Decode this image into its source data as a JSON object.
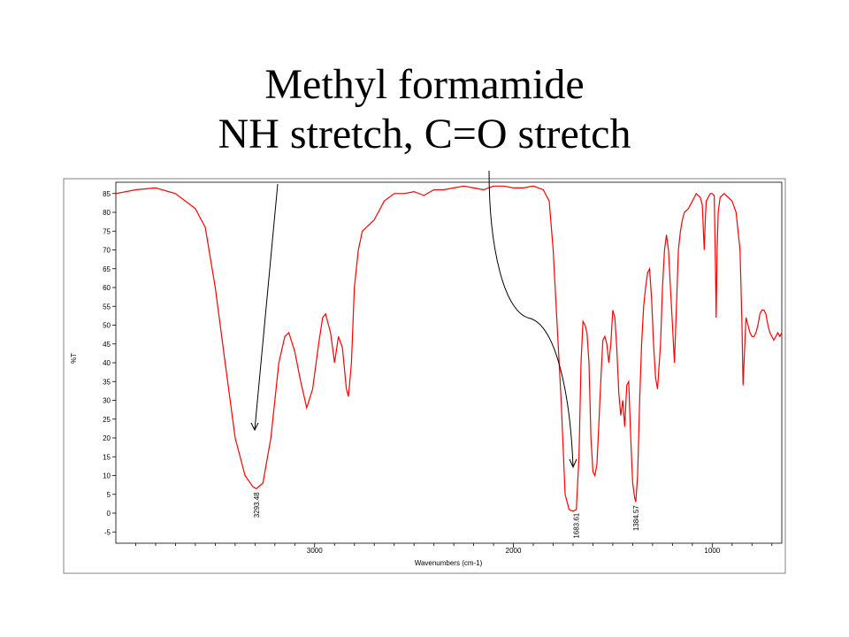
{
  "slide": {
    "title_line1": "Methyl formamide",
    "title_line2": "NH stretch, C=O stretch"
  },
  "chart_data": {
    "type": "line",
    "title": "",
    "xlabel": "Wavenumbers (cm-1)",
    "ylabel": "%T",
    "xlim": [
      4000,
      650
    ],
    "x_reversed": true,
    "ylim": [
      -8,
      88
    ],
    "x_ticks": [
      3000,
      2000,
      1000
    ],
    "y_ticks": [
      -5,
      0,
      5,
      10,
      15,
      20,
      25,
      30,
      35,
      40,
      45,
      50,
      55,
      60,
      65,
      70,
      75,
      80,
      85
    ],
    "grid": false,
    "line_color": "#ff0000",
    "series": [
      {
        "points": [
          [
            4000,
            85
          ],
          [
            3900,
            86
          ],
          [
            3800,
            86.5
          ],
          [
            3700,
            85
          ],
          [
            3600,
            81
          ],
          [
            3550,
            76
          ],
          [
            3500,
            60
          ],
          [
            3450,
            40
          ],
          [
            3400,
            20
          ],
          [
            3350,
            10
          ],
          [
            3310,
            7
          ],
          [
            3293.48,
            6.5
          ],
          [
            3260,
            8
          ],
          [
            3220,
            20
          ],
          [
            3180,
            40
          ],
          [
            3150,
            47
          ],
          [
            3130,
            48
          ],
          [
            3100,
            43
          ],
          [
            3070,
            35
          ],
          [
            3040,
            28
          ],
          [
            3010,
            33
          ],
          [
            2980,
            45
          ],
          [
            2960,
            52
          ],
          [
            2945,
            53
          ],
          [
            2920,
            48
          ],
          [
            2900,
            40
          ],
          [
            2880,
            47
          ],
          [
            2860,
            44
          ],
          [
            2840,
            33
          ],
          [
            2830,
            31
          ],
          [
            2815,
            40
          ],
          [
            2800,
            60
          ],
          [
            2780,
            70
          ],
          [
            2760,
            75
          ],
          [
            2740,
            76
          ],
          [
            2700,
            78
          ],
          [
            2650,
            83
          ],
          [
            2600,
            85
          ],
          [
            2550,
            85
          ],
          [
            2500,
            85.5
          ],
          [
            2450,
            84.5
          ],
          [
            2400,
            86
          ],
          [
            2350,
            86
          ],
          [
            2300,
            86.5
          ],
          [
            2250,
            87
          ],
          [
            2200,
            86.5
          ],
          [
            2150,
            86
          ],
          [
            2100,
            87
          ],
          [
            2050,
            87
          ],
          [
            2000,
            86.5
          ],
          [
            1950,
            86.5
          ],
          [
            1900,
            87
          ],
          [
            1850,
            86
          ],
          [
            1820,
            83
          ],
          [
            1800,
            70
          ],
          [
            1780,
            50
          ],
          [
            1760,
            30
          ],
          [
            1740,
            5
          ],
          [
            1720,
            1
          ],
          [
            1700,
            0.5
          ],
          [
            1683.61,
            1
          ],
          [
            1670,
            15
          ],
          [
            1660,
            40
          ],
          [
            1650,
            51
          ],
          [
            1640,
            50
          ],
          [
            1630,
            48
          ],
          [
            1620,
            40
          ],
          [
            1610,
            20
          ],
          [
            1600,
            11
          ],
          [
            1590,
            10
          ],
          [
            1580,
            13
          ],
          [
            1570,
            24
          ],
          [
            1560,
            36
          ],
          [
            1550,
            46
          ],
          [
            1540,
            47
          ],
          [
            1530,
            45
          ],
          [
            1520,
            40
          ],
          [
            1510,
            45
          ],
          [
            1500,
            54
          ],
          [
            1490,
            52
          ],
          [
            1480,
            44
          ],
          [
            1470,
            32
          ],
          [
            1460,
            26
          ],
          [
            1450,
            30
          ],
          [
            1440,
            23
          ],
          [
            1430,
            34
          ],
          [
            1420,
            35
          ],
          [
            1410,
            20
          ],
          [
            1400,
            8
          ],
          [
            1390,
            4
          ],
          [
            1384.57,
            3
          ],
          [
            1375,
            10
          ],
          [
            1365,
            30
          ],
          [
            1355,
            45
          ],
          [
            1345,
            55
          ],
          [
            1335,
            60
          ],
          [
            1325,
            64
          ],
          [
            1315,
            65
          ],
          [
            1305,
            57
          ],
          [
            1295,
            45
          ],
          [
            1285,
            36
          ],
          [
            1275,
            33
          ],
          [
            1260,
            45
          ],
          [
            1250,
            60
          ],
          [
            1240,
            70
          ],
          [
            1230,
            74
          ],
          [
            1220,
            70
          ],
          [
            1210,
            60
          ],
          [
            1200,
            50
          ],
          [
            1190,
            40
          ],
          [
            1180,
            55
          ],
          [
            1170,
            70
          ],
          [
            1160,
            75
          ],
          [
            1150,
            78
          ],
          [
            1140,
            80
          ],
          [
            1120,
            81
          ],
          [
            1100,
            83
          ],
          [
            1080,
            85
          ],
          [
            1060,
            84
          ],
          [
            1050,
            82
          ],
          [
            1040,
            70
          ],
          [
            1035,
            78
          ],
          [
            1030,
            83
          ],
          [
            1010,
            85
          ],
          [
            1000,
            85
          ],
          [
            990,
            84.5
          ],
          [
            985,
            70
          ],
          [
            980,
            52
          ],
          [
            975,
            70
          ],
          [
            970,
            80
          ],
          [
            960,
            84
          ],
          [
            940,
            85
          ],
          [
            920,
            84
          ],
          [
            900,
            83
          ],
          [
            880,
            80
          ],
          [
            860,
            70
          ],
          [
            850,
            50
          ],
          [
            845,
            34
          ],
          [
            840,
            40
          ],
          [
            830,
            52
          ],
          [
            820,
            50
          ],
          [
            810,
            48
          ],
          [
            800,
            47
          ],
          [
            790,
            47
          ],
          [
            780,
            48
          ],
          [
            770,
            50
          ],
          [
            760,
            53
          ],
          [
            750,
            54
          ],
          [
            740,
            54
          ],
          [
            730,
            53
          ],
          [
            720,
            50
          ],
          [
            710,
            48
          ],
          [
            700,
            47
          ],
          [
            690,
            46
          ],
          [
            680,
            47
          ],
          [
            670,
            48
          ],
          [
            660,
            47
          ],
          [
            650,
            48
          ]
        ]
      }
    ],
    "peak_labels": [
      {
        "x": 3293.48,
        "y": 6.5,
        "text": "3293.48"
      },
      {
        "x": 1683.61,
        "y": 1,
        "text": "1683.61"
      },
      {
        "x": 1384.57,
        "y": 3,
        "text": "1384.57"
      }
    ]
  }
}
